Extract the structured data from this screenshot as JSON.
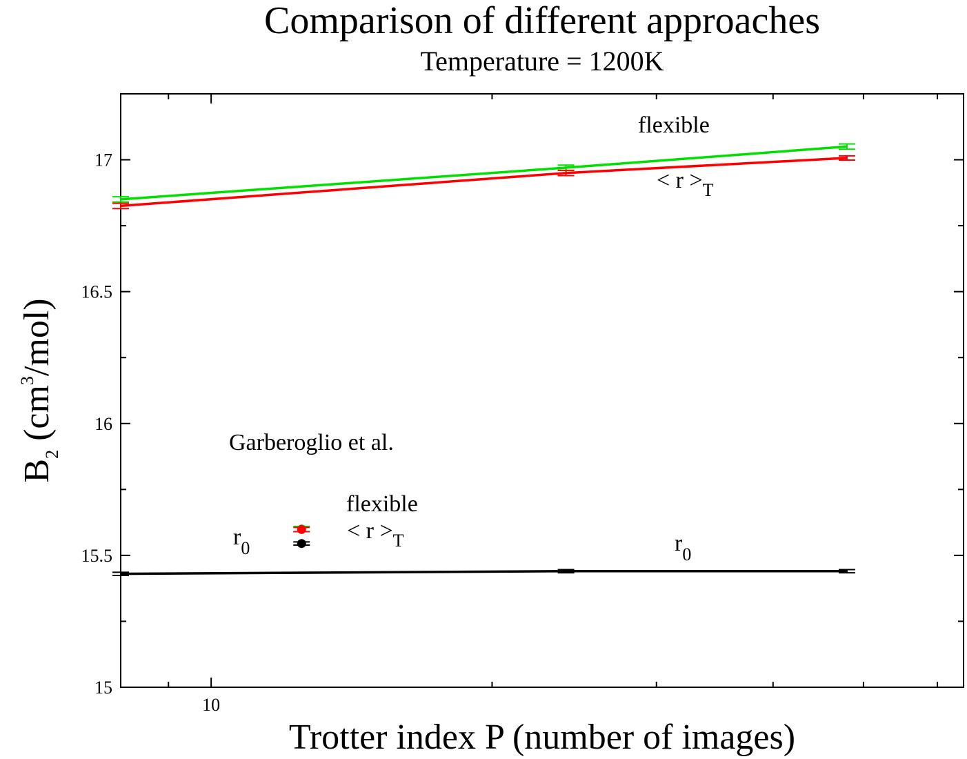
{
  "chart_data": {
    "type": "line",
    "title": "Comparison of different approaches",
    "subtitle": "Temperature = 1200K",
    "xlabel": "Trotter index P (number of images)",
    "ylabel": {
      "main": "B",
      "sub": "2",
      "rest_open": " (cm",
      "sup": "3",
      "rest_close": "/mol)"
    },
    "xscale": "log",
    "xlim": [
      8,
      64
    ],
    "ylim": [
      15,
      17.25
    ],
    "xticks": [
      {
        "value": 10,
        "label": "10"
      }
    ],
    "xminor": [
      9,
      20,
      30,
      40,
      50,
      60
    ],
    "yticks": [
      {
        "value": 15,
        "label": "15"
      },
      {
        "value": 15.5,
        "label": "15.5"
      },
      {
        "value": 16,
        "label": "16"
      },
      {
        "value": 16.5,
        "label": "16.5"
      },
      {
        "value": 17,
        "label": "17"
      }
    ],
    "yminor": [
      15.25,
      15.75,
      16.25,
      16.75,
      17.25
    ],
    "series": [
      {
        "color": "#00e000",
        "x": [
          8,
          24,
          48
        ],
        "y": [
          16.85,
          16.97,
          17.05
        ],
        "err": [
          0.01,
          0.01,
          0.01
        ]
      },
      {
        "color": "#ff0000",
        "x": [
          8,
          24,
          48
        ],
        "y": [
          16.825,
          16.95,
          17.007
        ],
        "err": [
          0.01,
          0.01,
          0.008
        ]
      },
      {
        "color": "#000000",
        "x": [
          8,
          24,
          48
        ],
        "y": [
          15.43,
          15.44,
          15.44
        ],
        "err": [
          0.006,
          0.006,
          0.006
        ]
      }
    ],
    "reference_points": [
      {
        "color": "#00e000",
        "x": 12.5,
        "y": 15.6,
        "err": 0.01
      },
      {
        "color": "#ff0000",
        "x": 12.5,
        "y": 15.598,
        "err": 0.008
      },
      {
        "color": "#000000",
        "x": 12.5,
        "y": 15.545,
        "err": 0.006
      }
    ],
    "annotations": {
      "flexible_top": "flexible",
      "r_T_top": {
        "main": "< r >",
        "sub": "T"
      },
      "garberoglio": "Garberoglio et al.",
      "flexible_mid": "flexible",
      "r_T_mid": {
        "main": "< r >",
        "sub": "T"
      },
      "r0_left": {
        "main": "r",
        "sub": "0"
      },
      "r0_right": {
        "main": "r",
        "sub": "0"
      }
    }
  }
}
